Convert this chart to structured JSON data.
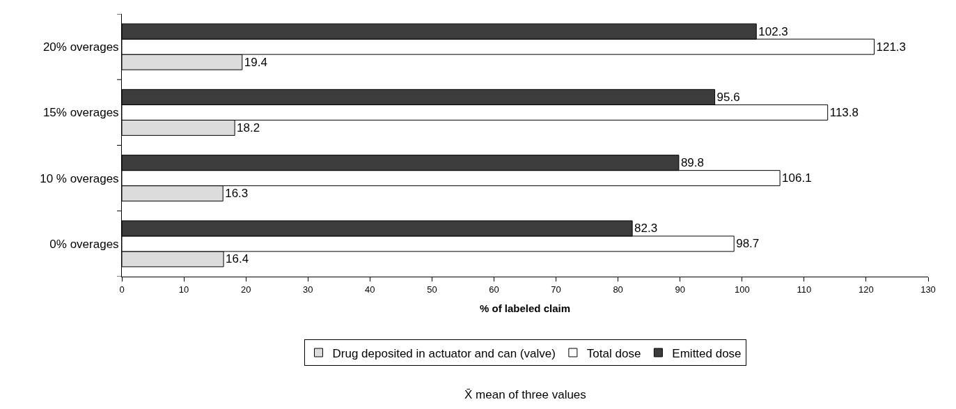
{
  "chart_data": {
    "type": "bar",
    "orientation": "horizontal",
    "xlabel": "% of labeled claim",
    "categories": [
      "20% overages",
      "15% overages",
      "10 % overages",
      "0% overages"
    ],
    "series": [
      {
        "name": "Drug deposited in actuator and can (valve)",
        "color": "#dcdcdc",
        "values": [
          19.4,
          18.2,
          16.3,
          16.4
        ]
      },
      {
        "name": "Total dose",
        "color": "#ffffff",
        "values": [
          121.3,
          113.8,
          106.1,
          98.7
        ]
      },
      {
        "name": "Emitted dose",
        "color": "#3c3c3c",
        "values": [
          102.3,
          95.6,
          89.8,
          82.3
        ]
      }
    ],
    "xlim": [
      0,
      130
    ],
    "xticks": [
      0,
      10,
      20,
      30,
      40,
      50,
      60,
      70,
      80,
      90,
      100,
      110,
      120,
      130
    ],
    "data_labels": true,
    "legend": "bottom",
    "annotations": [
      "X̄ mean of three values"
    ]
  }
}
